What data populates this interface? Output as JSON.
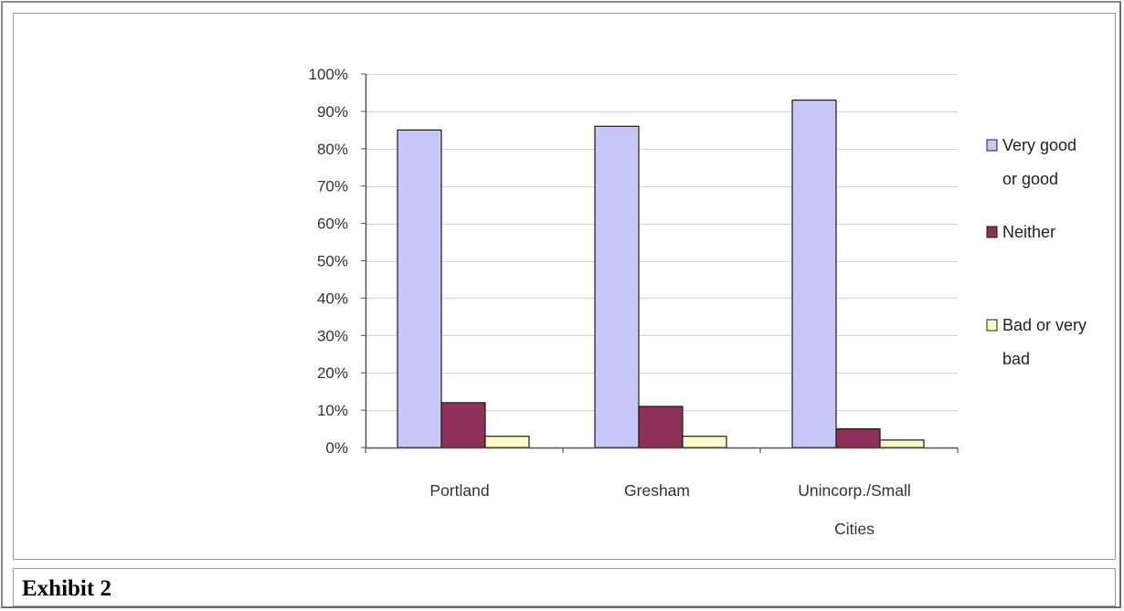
{
  "caption": "Exhibit 2",
  "chart_data": {
    "type": "bar",
    "categories": [
      "Portland",
      "Gresham",
      "Unincorp./Small Cities"
    ],
    "category_label_lines": [
      [
        "Portland"
      ],
      [
        "Gresham"
      ],
      [
        "Unincorp./Small",
        "Cities"
      ]
    ],
    "series": [
      {
        "name": "Very good or good",
        "legend_lines": [
          "Very good",
          "or good"
        ],
        "color": "#c8c8f8",
        "values": [
          85,
          86,
          93
        ]
      },
      {
        "name": "Neither",
        "legend_lines": [
          "Neither"
        ],
        "color": "#8e3158",
        "values": [
          12,
          11,
          5
        ]
      },
      {
        "name": "Bad or very bad",
        "legend_lines": [
          "Bad or very",
          "bad"
        ],
        "color": "#fcfcc8",
        "values": [
          3,
          3,
          2
        ]
      }
    ],
    "ylim": [
      0,
      100
    ],
    "y_ticks": [
      0,
      10,
      20,
      30,
      40,
      50,
      60,
      70,
      80,
      90,
      100
    ],
    "y_tick_labels": [
      "0%",
      "10%",
      "20%",
      "30%",
      "40%",
      "50%",
      "60%",
      "70%",
      "80%",
      "90%",
      "100%"
    ],
    "grid": true,
    "legend_position": "right",
    "xlabel": "",
    "ylabel": ""
  }
}
